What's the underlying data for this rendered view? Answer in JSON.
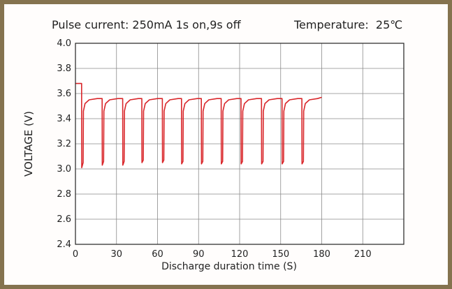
{
  "chart_data": {
    "type": "line",
    "title": "Pulse current: 250mA 1s on,9s off",
    "subtitle": "Temperature:  25℃",
    "xlabel": "Discharge duration time (S)",
    "ylabel": "VOLTAGE (V)",
    "xlim": [
      0,
      240
    ],
    "ylim": [
      2.4,
      4.0
    ],
    "xticks": [
      0,
      30,
      60,
      90,
      120,
      150,
      180,
      210
    ],
    "yticks": [
      "4.0",
      "3.8",
      "3.6",
      "3.4",
      "3.2",
      "3.0",
      "2.8",
      "2.6",
      "2.4"
    ],
    "grid": true,
    "line_color": "#d9262a",
    "series": [
      {
        "values": [
          [
            0,
            3.68
          ],
          [
            4.5,
            3.68
          ],
          [
            4.6,
            3.01
          ],
          [
            5.6,
            3.05
          ],
          [
            5.8,
            3.46
          ],
          [
            7,
            3.52
          ],
          [
            10,
            3.55
          ],
          [
            16,
            3.56
          ],
          [
            19.5,
            3.56
          ],
          [
            19.6,
            3.03
          ],
          [
            20.6,
            3.06
          ],
          [
            20.8,
            3.46
          ],
          [
            22,
            3.52
          ],
          [
            25,
            3.55
          ],
          [
            31,
            3.56
          ],
          [
            34.5,
            3.56
          ],
          [
            34.6,
            3.03
          ],
          [
            35.6,
            3.06
          ],
          [
            35.8,
            3.46
          ],
          [
            37,
            3.52
          ],
          [
            40,
            3.55
          ],
          [
            46,
            3.56
          ],
          [
            48.5,
            3.56
          ],
          [
            48.6,
            3.05
          ],
          [
            49.6,
            3.07
          ],
          [
            49.8,
            3.46
          ],
          [
            51,
            3.52
          ],
          [
            54,
            3.55
          ],
          [
            60,
            3.56
          ],
          [
            63.5,
            3.56
          ],
          [
            63.6,
            3.05
          ],
          [
            64.6,
            3.07
          ],
          [
            64.8,
            3.46
          ],
          [
            66,
            3.52
          ],
          [
            69,
            3.55
          ],
          [
            75,
            3.56
          ],
          [
            77.5,
            3.56
          ],
          [
            77.6,
            3.04
          ],
          [
            78.6,
            3.06
          ],
          [
            78.8,
            3.46
          ],
          [
            80,
            3.52
          ],
          [
            83,
            3.55
          ],
          [
            89,
            3.56
          ],
          [
            92,
            3.56
          ],
          [
            92.1,
            3.04
          ],
          [
            93.1,
            3.06
          ],
          [
            93.3,
            3.46
          ],
          [
            94.5,
            3.52
          ],
          [
            97.5,
            3.55
          ],
          [
            103.5,
            3.56
          ],
          [
            106.5,
            3.56
          ],
          [
            106.6,
            3.04
          ],
          [
            107.6,
            3.06
          ],
          [
            107.8,
            3.46
          ],
          [
            109,
            3.52
          ],
          [
            112,
            3.55
          ],
          [
            118,
            3.56
          ],
          [
            121,
            3.56
          ],
          [
            121.1,
            3.04
          ],
          [
            122.1,
            3.06
          ],
          [
            122.3,
            3.46
          ],
          [
            123.5,
            3.52
          ],
          [
            126.5,
            3.55
          ],
          [
            132.5,
            3.56
          ],
          [
            136,
            3.56
          ],
          [
            136.1,
            3.04
          ],
          [
            137.1,
            3.06
          ],
          [
            137.3,
            3.46
          ],
          [
            138.5,
            3.52
          ],
          [
            141.5,
            3.55
          ],
          [
            147.5,
            3.56
          ],
          [
            151,
            3.56
          ],
          [
            151.1,
            3.04
          ],
          [
            152.1,
            3.06
          ],
          [
            152.3,
            3.46
          ],
          [
            153.5,
            3.52
          ],
          [
            156.5,
            3.55
          ],
          [
            162.5,
            3.56
          ],
          [
            165.5,
            3.56
          ],
          [
            165.6,
            3.04
          ],
          [
            166.6,
            3.06
          ],
          [
            166.8,
            3.46
          ],
          [
            168,
            3.52
          ],
          [
            171,
            3.55
          ],
          [
            177,
            3.56
          ],
          [
            180,
            3.57
          ]
        ]
      }
    ]
  }
}
